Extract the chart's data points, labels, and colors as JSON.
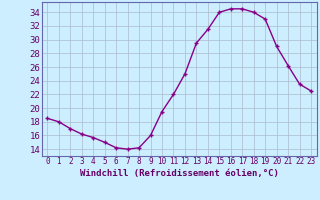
{
  "x": [
    0,
    1,
    2,
    3,
    4,
    5,
    6,
    7,
    8,
    9,
    10,
    11,
    12,
    13,
    14,
    15,
    16,
    17,
    18,
    19,
    20,
    21,
    22,
    23
  ],
  "y": [
    18.5,
    18.0,
    17.0,
    16.2,
    15.7,
    15.0,
    14.2,
    14.0,
    14.2,
    16.0,
    19.5,
    22.0,
    25.0,
    29.5,
    31.5,
    34.0,
    34.5,
    34.5,
    34.0,
    33.0,
    29.0,
    26.2,
    23.5,
    22.5
  ],
  "line_color": "#880088",
  "marker": "+",
  "marker_size": 3,
  "bg_color": "#cceeff",
  "grid_color": "#aabbcc",
  "xlabel": "Windchill (Refroidissement éolien,°C)",
  "ylabel_ticks": [
    14,
    16,
    18,
    20,
    22,
    24,
    26,
    28,
    30,
    32,
    34
  ],
  "xlim": [
    -0.5,
    23.5
  ],
  "ylim": [
    13.0,
    35.5
  ],
  "xticks": [
    0,
    1,
    2,
    3,
    4,
    5,
    6,
    7,
    8,
    9,
    10,
    11,
    12,
    13,
    14,
    15,
    16,
    17,
    18,
    19,
    20,
    21,
    22,
    23
  ],
  "axis_label_color": "#660066",
  "tick_color": "#660066",
  "font_size_xlabel": 6.5,
  "font_size_ytick": 6.5,
  "font_size_xtick": 5.5,
  "spine_color": "#6666aa",
  "linewidth": 1.0
}
